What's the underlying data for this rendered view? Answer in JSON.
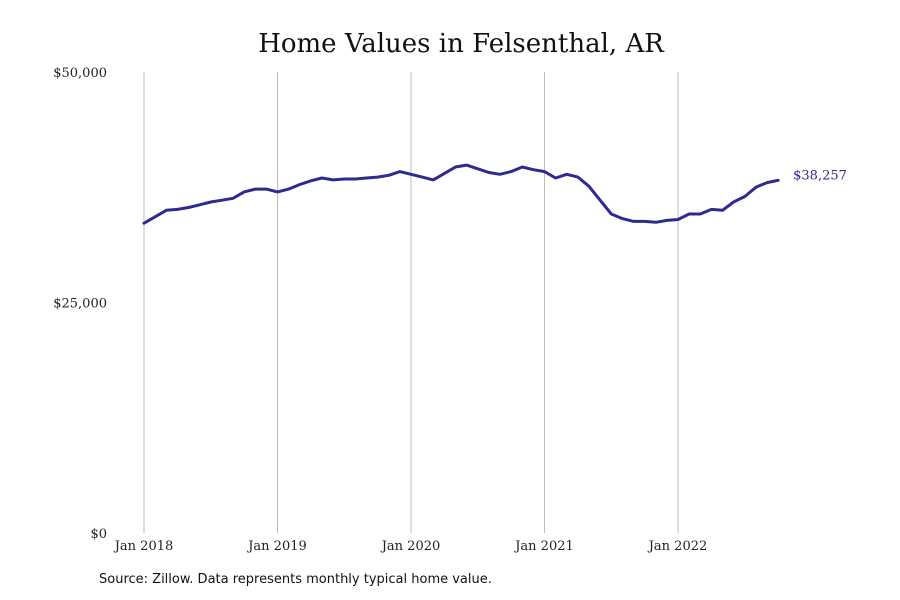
{
  "chart_data": {
    "type": "line",
    "title": "Home Values in Felsenthal, AR",
    "xlabel": "",
    "ylabel": "",
    "ylim": [
      0,
      50000
    ],
    "y_ticks": [
      {
        "value": 0,
        "label": "$0"
      },
      {
        "value": 25000,
        "label": "$25,000"
      },
      {
        "value": 50000,
        "label": "$50,000"
      }
    ],
    "x_ticks": [
      {
        "date": "2018-01",
        "label": "Jan 2018"
      },
      {
        "date": "2019-01",
        "label": "Jan 2019"
      },
      {
        "date": "2020-01",
        "label": "Jan 2020"
      },
      {
        "date": "2021-01",
        "label": "Jan 2021"
      },
      {
        "date": "2022-01",
        "label": "Jan 2022"
      }
    ],
    "grid": "vertical",
    "line_color": "#2e2a8f",
    "end_label": "$38,257",
    "series": [
      {
        "x": [
          "2018-01",
          "2018-02",
          "2018-03",
          "2018-04",
          "2018-05",
          "2018-06",
          "2018-07",
          "2018-08",
          "2018-09",
          "2018-10",
          "2018-11",
          "2018-12",
          "2019-01",
          "2019-02",
          "2019-03",
          "2019-04",
          "2019-05",
          "2019-06",
          "2019-07",
          "2019-08",
          "2019-09",
          "2019-10",
          "2019-11",
          "2019-12",
          "2020-01",
          "2020-02",
          "2020-03",
          "2020-04",
          "2020-05",
          "2020-06",
          "2020-07",
          "2020-08",
          "2020-09",
          "2020-10",
          "2020-11",
          "2020-12",
          "2021-01",
          "2021-02",
          "2021-03",
          "2021-04",
          "2021-05",
          "2021-06",
          "2021-07",
          "2021-08",
          "2021-09",
          "2021-10",
          "2021-11",
          "2021-12",
          "2022-01",
          "2022-02",
          "2022-03",
          "2022-04",
          "2022-05",
          "2022-06",
          "2022-07",
          "2022-08",
          "2022-09",
          "2022-10"
        ],
        "values": [
          33600,
          34300,
          35000,
          35100,
          35300,
          35600,
          35900,
          36100,
          36300,
          37000,
          37300,
          37300,
          37000,
          37300,
          37800,
          38200,
          38500,
          38300,
          38400,
          38400,
          38500,
          38600,
          38800,
          39200,
          38900,
          38600,
          38300,
          39000,
          39700,
          39900,
          39500,
          39100,
          38900,
          39200,
          39700,
          39400,
          39200,
          38500,
          38900,
          38600,
          37600,
          36100,
          34600,
          34100,
          33800,
          33800,
          33700,
          33900,
          34000,
          34600,
          34600,
          35100,
          35000,
          35900,
          36500,
          37500,
          38000,
          38257
        ]
      }
    ]
  },
  "source_note": "Source: Zillow. Data represents monthly typical home value."
}
